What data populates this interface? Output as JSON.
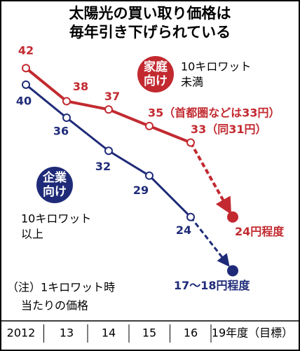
{
  "chart_data": {
    "type": "line",
    "title": [
      "太陽光の買い取り価格は",
      "毎年引き下げられている"
    ],
    "categories": [
      "2012",
      "13",
      "14",
      "15",
      "16",
      "19年度（目標）"
    ],
    "ylim": [
      10,
      46
    ],
    "series": [
      {
        "name": "家庭向け",
        "note": [
          "10キロワット",
          "未満"
        ],
        "color": "#c22a30",
        "values": [
          42,
          38,
          37,
          35,
          33,
          24
        ],
        "value_labels": [
          "42",
          "38",
          "37",
          "35（首都圏などは33円）",
          "33（同31円）",
          "24円程度"
        ]
      },
      {
        "name": "企業向け",
        "note": [
          "10キロワット",
          "以上"
        ],
        "color": "#1f2b78",
        "values": [
          40,
          36,
          32,
          29,
          24,
          17.5
        ],
        "value_labels": [
          "40",
          "36",
          "32",
          "29",
          "24",
          "17～18円程度"
        ]
      }
    ],
    "footnote": [
      "（注）1キロワット時",
      "当たりの価格"
    ]
  }
}
